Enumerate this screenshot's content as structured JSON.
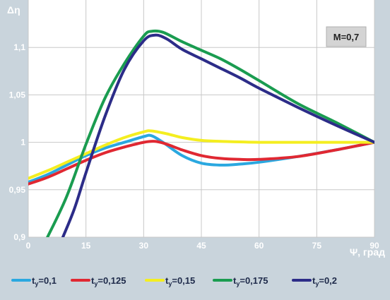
{
  "chart_data": {
    "type": "line",
    "ylabel": "Δη",
    "xlabel": "Ψ, град",
    "annotation": "M=0,7",
    "xlim": [
      0,
      90
    ],
    "ylim": [
      0.9,
      1.15
    ],
    "xticks": [
      0,
      15,
      30,
      45,
      60,
      75,
      90
    ],
    "xtick_labels": [
      "0",
      "15",
      "30",
      "45",
      "60",
      "75",
      "90"
    ],
    "yticks": [
      0.9,
      0.95,
      1.0,
      1.05,
      1.1
    ],
    "ytick_labels": [
      "0,9",
      "0,95",
      "1",
      "1,05",
      "1,1"
    ],
    "grid": true,
    "legend_position": "bottom",
    "series": [
      {
        "name_main": "t",
        "name_sub": "у",
        "name_rest": "=0,1",
        "color": "#2aa8e0",
        "points": [
          [
            0,
            0.958
          ],
          [
            5,
            0.966
          ],
          [
            10,
            0.976
          ],
          [
            15,
            0.986
          ],
          [
            20,
            0.994
          ],
          [
            25,
            1.0
          ],
          [
            30,
            1.006
          ],
          [
            32,
            1.007
          ],
          [
            35,
            1.0
          ],
          [
            40,
            0.986
          ],
          [
            45,
            0.978
          ],
          [
            50,
            0.976
          ],
          [
            55,
            0.977
          ],
          [
            60,
            0.979
          ],
          [
            70,
            0.985
          ],
          [
            80,
            0.992
          ],
          [
            90,
            1.0
          ]
        ]
      },
      {
        "name_main": "t",
        "name_sub": "у",
        "name_rest": "=0,125",
        "color": "#e02832",
        "points": [
          [
            0,
            0.956
          ],
          [
            5,
            0.963
          ],
          [
            10,
            0.972
          ],
          [
            15,
            0.981
          ],
          [
            20,
            0.989
          ],
          [
            25,
            0.995
          ],
          [
            30,
            1.0
          ],
          [
            33,
            1.001
          ],
          [
            36,
            0.998
          ],
          [
            40,
            0.992
          ],
          [
            45,
            0.986
          ],
          [
            50,
            0.983
          ],
          [
            55,
            0.982
          ],
          [
            60,
            0.982
          ],
          [
            70,
            0.985
          ],
          [
            80,
            0.992
          ],
          [
            90,
            1.0
          ]
        ]
      },
      {
        "name_main": "t",
        "name_sub": "у",
        "name_rest": "=0,15",
        "color": "#f4ee20",
        "points": [
          [
            0,
            0.962
          ],
          [
            5,
            0.97
          ],
          [
            10,
            0.979
          ],
          [
            15,
            0.988
          ],
          [
            20,
            0.997
          ],
          [
            25,
            1.005
          ],
          [
            30,
            1.011
          ],
          [
            32,
            1.012
          ],
          [
            36,
            1.009
          ],
          [
            40,
            1.005
          ],
          [
            45,
            1.002
          ],
          [
            50,
            1.001
          ],
          [
            60,
            1.0
          ],
          [
            70,
            1.0
          ],
          [
            80,
            1.0
          ],
          [
            90,
            1.0
          ]
        ]
      },
      {
        "name_main": "t",
        "name_sub": "у",
        "name_rest": "=0,175",
        "color": "#1a9c50",
        "points": [
          [
            5,
            0.9
          ],
          [
            10,
            0.943
          ],
          [
            15,
            0.998
          ],
          [
            20,
            1.047
          ],
          [
            25,
            1.083
          ],
          [
            30,
            1.112
          ],
          [
            32,
            1.117
          ],
          [
            35,
            1.116
          ],
          [
            40,
            1.106
          ],
          [
            45,
            1.097
          ],
          [
            50,
            1.088
          ],
          [
            55,
            1.077
          ],
          [
            60,
            1.065
          ],
          [
            70,
            1.041
          ],
          [
            80,
            1.021
          ],
          [
            90,
            1.0
          ]
        ]
      },
      {
        "name_main": "t",
        "name_sub": "у",
        "name_rest": "=0,2",
        "color": "#2c2c88",
        "points": [
          [
            9,
            0.9
          ],
          [
            12,
            0.93
          ],
          [
            15,
            0.968
          ],
          [
            20,
            1.028
          ],
          [
            25,
            1.077
          ],
          [
            30,
            1.107
          ],
          [
            33,
            1.113
          ],
          [
            36,
            1.109
          ],
          [
            40,
            1.098
          ],
          [
            45,
            1.088
          ],
          [
            50,
            1.078
          ],
          [
            55,
            1.068
          ],
          [
            60,
            1.057
          ],
          [
            70,
            1.037
          ],
          [
            80,
            1.018
          ],
          [
            90,
            1.0
          ]
        ]
      }
    ]
  }
}
